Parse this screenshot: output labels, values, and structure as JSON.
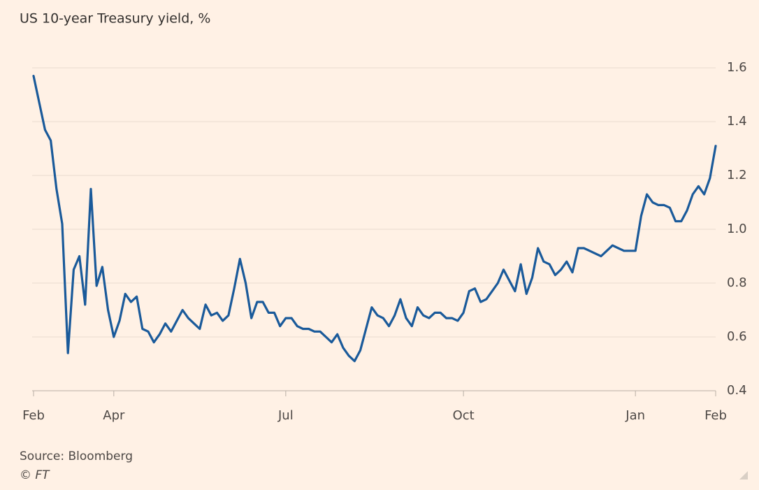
{
  "chart_data": {
    "type": "line",
    "title": "US 10-year Treasury yield, %",
    "source": "Source: Bloomberg",
    "credit": "© FT",
    "color": "#1a5a9a",
    "grid": true,
    "ylim": [
      0.4,
      1.6
    ],
    "yticks": [
      0.4,
      0.6,
      0.8,
      {
        "value": 1,
        "label": "1.0"
      },
      1.2,
      1.4,
      1.6
    ],
    "categories": [
      "Feb",
      null,
      null,
      null,
      null,
      null,
      null,
      null,
      null,
      null,
      null,
      null,
      null,
      null,
      "Apr",
      null,
      null,
      null,
      null,
      null,
      null,
      null,
      null,
      null,
      null,
      null,
      null,
      null,
      null,
      null,
      null,
      null,
      null,
      null,
      null,
      null,
      null,
      null,
      null,
      null,
      null,
      null,
      null,
      null,
      "Jul",
      null,
      null,
      null,
      null,
      null,
      null,
      null,
      null,
      null,
      null,
      null,
      null,
      null,
      null,
      null,
      null,
      null,
      null,
      null,
      null,
      null,
      null,
      null,
      null,
      null,
      null,
      null,
      null,
      null,
      null,
      "Oct",
      null,
      null,
      null,
      null,
      null,
      null,
      null,
      null,
      null,
      null,
      null,
      null,
      null,
      null,
      null,
      null,
      null,
      null,
      null,
      null,
      null,
      null,
      null,
      null,
      null,
      null,
      null,
      null,
      null,
      "Jan",
      null,
      null,
      null,
      null,
      null,
      null,
      null,
      null,
      null,
      null,
      null,
      null,
      null,
      "Feb"
    ],
    "values": [
      1.57,
      1.47,
      1.37,
      1.33,
      1.15,
      1.02,
      0.54,
      0.85,
      0.9,
      0.72,
      1.15,
      0.79,
      0.86,
      0.7,
      0.6,
      0.66,
      0.76,
      0.73,
      0.75,
      0.63,
      0.62,
      0.58,
      0.61,
      0.65,
      0.62,
      0.66,
      0.7,
      0.67,
      0.65,
      0.63,
      0.72,
      0.68,
      0.69,
      0.66,
      0.68,
      0.78,
      0.89,
      0.8,
      0.67,
      0.73,
      0.73,
      0.69,
      0.69,
      0.64,
      0.67,
      0.67,
      0.64,
      0.63,
      0.63,
      0.62,
      0.62,
      0.6,
      0.58,
      0.61,
      0.56,
      0.53,
      0.51,
      0.55,
      0.63,
      0.71,
      0.68,
      0.67,
      0.64,
      0.68,
      0.74,
      0.67,
      0.64,
      0.71,
      0.68,
      0.67,
      0.69,
      0.69,
      0.67,
      0.67,
      0.66,
      0.69,
      0.77,
      0.78,
      0.73,
      0.74,
      0.77,
      0.8,
      0.85,
      0.81,
      0.77,
      0.87,
      0.76,
      0.82,
      0.93,
      0.88,
      0.87,
      0.83,
      0.85,
      0.88,
      0.84,
      0.93,
      0.93,
      0.92,
      0.91,
      0.9,
      0.92,
      0.94,
      0.93,
      0.92,
      0.92,
      0.92,
      1.05,
      1.13,
      1.1,
      1.09,
      1.09,
      1.08,
      1.03,
      1.03,
      1.07,
      1.13,
      1.16,
      1.13,
      1.19,
      1.31
    ]
  }
}
